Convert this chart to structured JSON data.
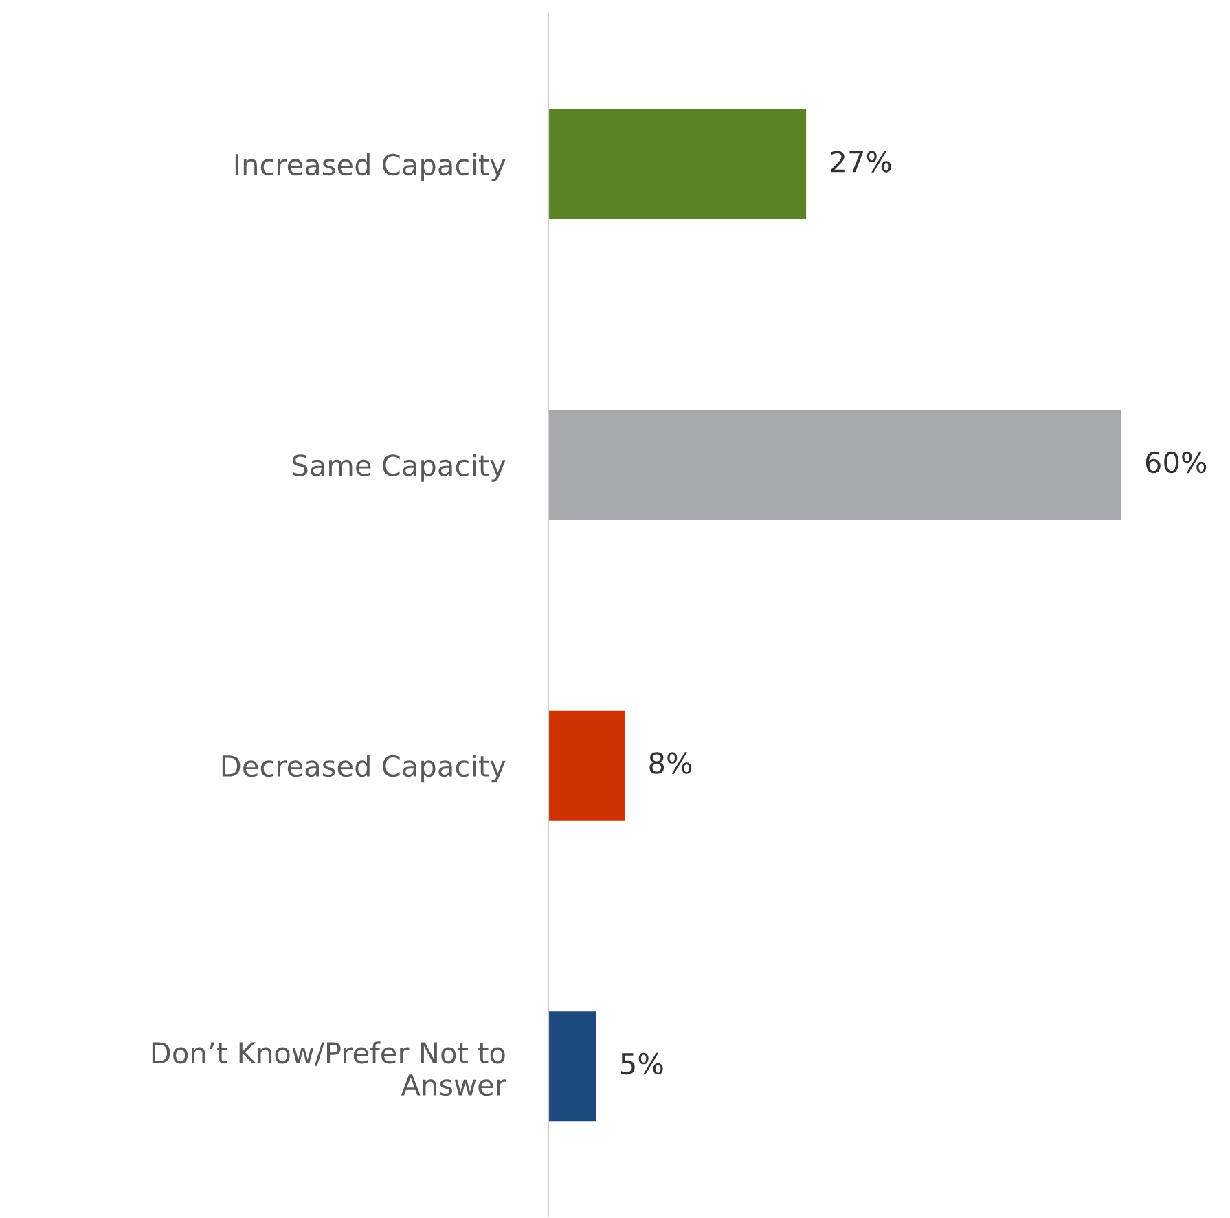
{
  "chart_data": {
    "type": "bar",
    "orientation": "horizontal",
    "categories": [
      "Increased Capacity",
      "Same Capacity",
      "Decreased Capacity",
      "Don’t Know/Prefer Not to\nAnswer"
    ],
    "values": [
      27,
      60,
      8,
      5
    ],
    "colors": [
      "#5b8427",
      "#a7a8ab",
      "#cc3300",
      "#1c4a7c"
    ],
    "value_labels": [
      "27%",
      "60%",
      "8%",
      "5%"
    ],
    "grid": false,
    "legend": false
  }
}
